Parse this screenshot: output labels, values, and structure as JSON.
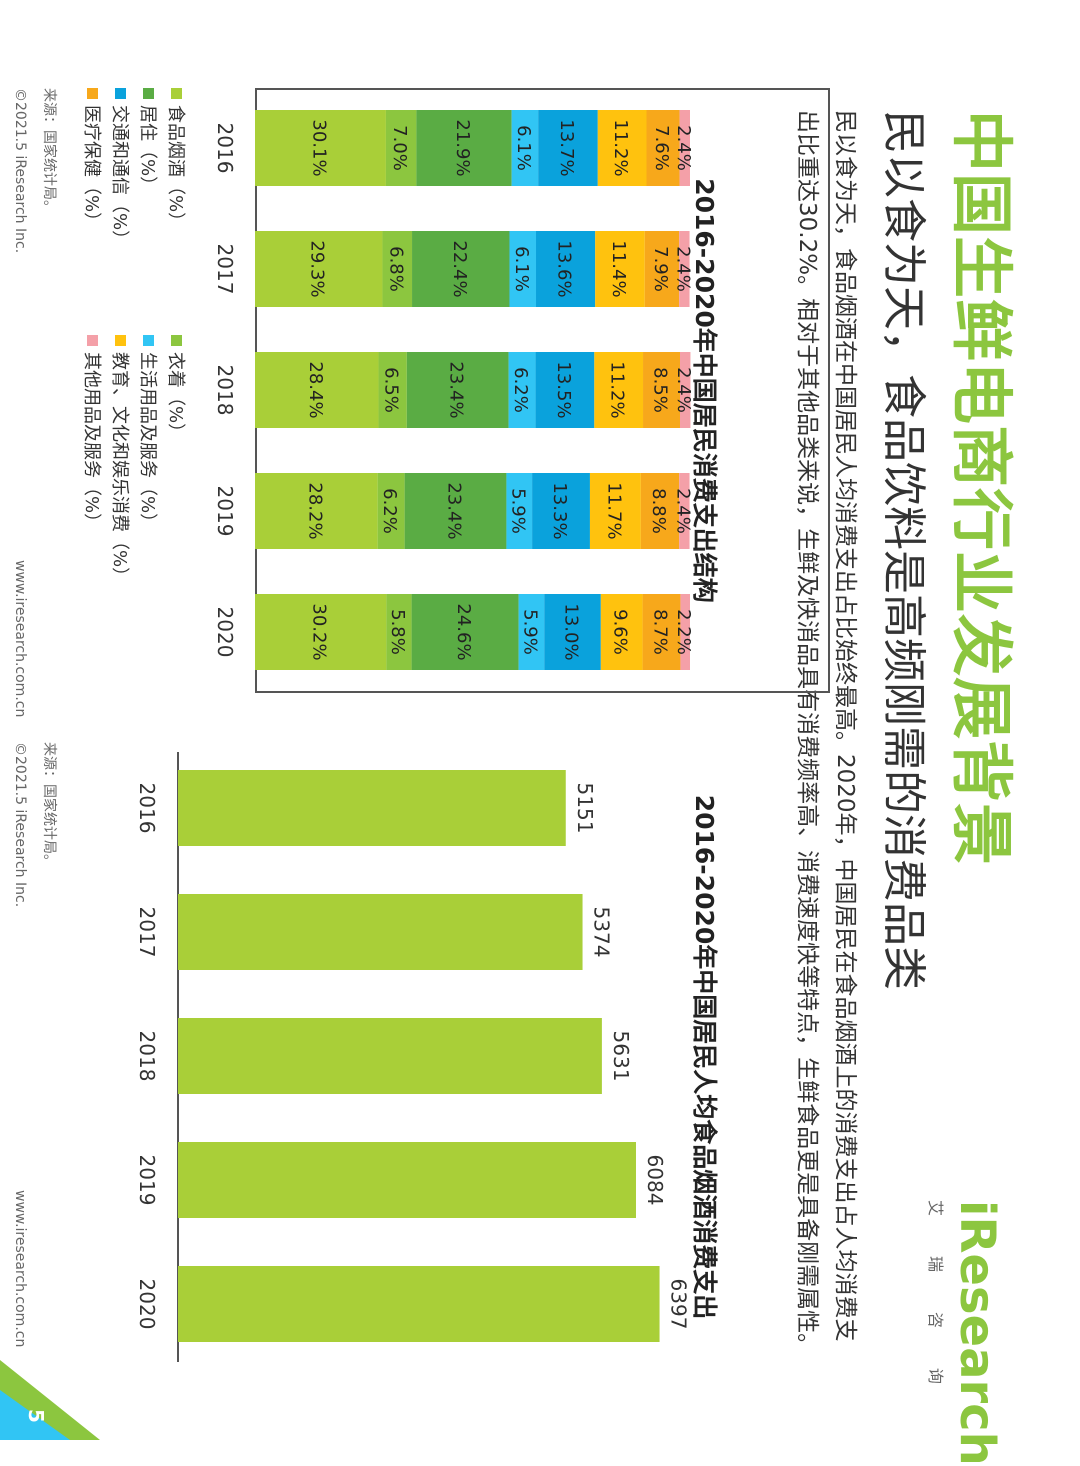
{
  "page": {
    "title": "中国生鲜电商行业发展背景",
    "subtitle": "民以食为天，食品饮料是高频刚需的消费品类",
    "paragraph": "民以食为天，食品烟酒在中国居民人均消费支出占比始终最高。2020年，中国居民在食品烟酒上的消费支出占人均消费支出比重达30.2%。相对于其他品类来说，生鲜及快消品具有消费频率高、消费速度快等特点，生鲜食品更是具备刚需属性。",
    "logo_text": "iResearch",
    "logo_cn": "艾瑞咨询",
    "page_number": "5",
    "brand_color": "#8cc63f"
  },
  "left_panel": {
    "source": "来源：国家统计局。",
    "copyright": "©2021.5 iResearch Inc.",
    "url": "www.iresearch.com.cn"
  },
  "right_panel": {
    "source": "来源：国家统计局。",
    "copyright": "©2021.5 iResearch Inc.",
    "url": "www.iresearch.com.cn"
  },
  "chart_data": [
    {
      "type": "bar",
      "stacked": true,
      "title": "2016-2020年中国居民消费支出结构",
      "categories": [
        "2016",
        "2017",
        "2018",
        "2019",
        "2020"
      ],
      "ylim": [
        0,
        100
      ],
      "series": [
        {
          "name": "食品烟酒（%）",
          "color": "#a9cf38",
          "values": [
            30.1,
            29.3,
            28.4,
            28.2,
            30.2
          ]
        },
        {
          "name": "衣着（%）",
          "color": "#8cc63f",
          "values": [
            7.0,
            6.8,
            6.5,
            6.2,
            5.8
          ]
        },
        {
          "name": "居住（%）",
          "color": "#5aac44",
          "values": [
            21.9,
            22.4,
            23.4,
            23.4,
            24.6
          ]
        },
        {
          "name": "生活用品及服务（%）",
          "color": "#31c5f4",
          "values": [
            6.1,
            6.1,
            6.2,
            5.9,
            5.9
          ]
        },
        {
          "name": "交通和通信（%）",
          "color": "#0aa2dc",
          "values": [
            13.7,
            13.6,
            13.5,
            13.3,
            13.0
          ]
        },
        {
          "name": "教育、文化和娱乐消费（%）",
          "color": "#ffc20e",
          "values": [
            11.2,
            11.4,
            11.2,
            11.7,
            9.6
          ]
        },
        {
          "name": "医疗保健（%）",
          "color": "#f7a81b",
          "values": [
            7.6,
            7.9,
            8.5,
            8.8,
            8.7
          ]
        },
        {
          "name": "其他用品及服务（%）",
          "color": "#f4a0a8",
          "values": [
            2.4,
            2.4,
            2.4,
            2.4,
            2.2
          ]
        }
      ],
      "labels": [
        [
          "30.1%",
          "7.0%",
          "21.9%",
          "6.1%",
          "13.7%",
          "11.2%",
          "7.6%",
          "2.4%"
        ],
        [
          "29.3%",
          "6.8%",
          "22.4%",
          "6.1%",
          "13.6%",
          "11.4%",
          "7.9%",
          "2.4%"
        ],
        [
          "28.4%",
          "6.5%",
          "23.4%",
          "6.2%",
          "13.5%",
          "11.2%",
          "8.5%",
          "2.4%"
        ],
        [
          "28.2%",
          "6.2%",
          "23.4%",
          "5.9%",
          "13.3%",
          "11.7%",
          "8.8%",
          "2.4%"
        ],
        [
          "30.2%",
          "5.8%",
          "24.6%",
          "5.9%",
          "13.0%",
          "9.6%",
          "8.7%",
          "2.2%"
        ]
      ]
    },
    {
      "type": "bar",
      "title": "2016-2020年中国居民人均食品烟酒消费支出",
      "categories": [
        "2016",
        "2017",
        "2018",
        "2019",
        "2020"
      ],
      "values": [
        5151,
        5374,
        5631,
        6084,
        6397
      ],
      "color": "#a9cf38",
      "ylim": [
        0,
        7200
      ]
    }
  ]
}
